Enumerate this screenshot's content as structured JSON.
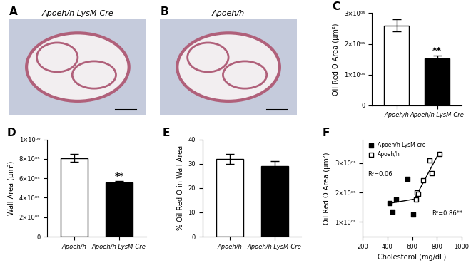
{
  "chart_data": [
    {
      "panel": "A",
      "type": "image",
      "title": "Apoeh/h LysM-Cre"
    },
    {
      "panel": "B",
      "type": "image",
      "title": "Apoeh/h"
    },
    {
      "panel": "C",
      "type": "bar",
      "categories": [
        "Apoeh/h",
        "Apoeh/h LysM-Cre"
      ],
      "values": [
        260000,
        152000
      ],
      "errors": [
        20000,
        10000
      ],
      "colors": [
        "#ffffff",
        "#000000"
      ],
      "y_label": "Oil Red O Area (µm²)",
      "ylim": [
        0,
        300000
      ],
      "yticks": [
        0,
        {
          "value": 100000,
          "label": "1×10⁰⁵"
        },
        {
          "value": 200000,
          "label": "2×10⁰⁵"
        },
        {
          "value": 300000,
          "label": "3×10⁰⁵"
        }
      ],
      "annotations": [
        {
          "text": "**",
          "x": "Apoeh/h LysM-Cre"
        }
      ]
    },
    {
      "panel": "D",
      "type": "bar",
      "categories": [
        "Apoeh/h",
        "Apoeh/h LysM-Cre"
      ],
      "values": [
        810000,
        555000
      ],
      "errors": [
        40000,
        15000
      ],
      "colors": [
        "#ffffff",
        "#000000"
      ],
      "y_label": "Wall Area (µm²)",
      "ylim": [
        0,
        1000000
      ],
      "yticks": [
        0,
        {
          "value": 200000,
          "label": "2×10⁰⁵"
        },
        {
          "value": 400000,
          "label": "4×10⁰⁵"
        },
        {
          "value": 600000,
          "label": "6×10⁰⁵"
        },
        {
          "value": 800000,
          "label": "8×10⁰⁵"
        },
        {
          "value": 1000000,
          "label": "1×10⁰⁶"
        }
      ],
      "annotations": [
        {
          "text": "**",
          "x": "Apoeh/h LysM-Cre"
        }
      ]
    },
    {
      "panel": "E",
      "type": "bar",
      "categories": [
        "Apoeh/h",
        "Apoeh/h LysM-Cre"
      ],
      "values": [
        32,
        29
      ],
      "errors": [
        2,
        2
      ],
      "colors": [
        "#ffffff",
        "#000000"
      ],
      "y_label": "% Oil Red O in Wall Area",
      "ylim": [
        0,
        40
      ],
      "yticks": [
        0,
        10,
        20,
        30,
        40
      ]
    },
    {
      "panel": "F",
      "type": "scatter",
      "series": [
        {
          "name": "Apoeh/h LysM-cre",
          "color": "#000000",
          "marker": "filled_square",
          "x": [
            420,
            440,
            470,
            560,
            610
          ],
          "values": [
            165000,
            135000,
            175000,
            245000,
            125000
          ]
        },
        {
          "name": "Apoeh/h",
          "color": "#000000",
          "marker": "open_square",
          "x": [
            630,
            640,
            650,
            690,
            740,
            760,
            820
          ],
          "values": [
            175000,
            200000,
            195000,
            240000,
            310000,
            265000,
            330000
          ]
        }
      ],
      "legend": "upper left",
      "x_label": "Cholesterol (mg/dL)",
      "y_label": "Oil Red O Area (µm²)",
      "xlim": [
        200,
        1000
      ],
      "xticks": [
        200,
        400,
        600,
        800,
        1000
      ],
      "ylim": [
        50000,
        380000
      ],
      "yticks": [
        {
          "value": 100000,
          "label": "1×10⁰⁵"
        },
        {
          "value": 200000,
          "label": "2×10⁰⁵"
        },
        {
          "value": 300000,
          "label": "3×10⁰⁵"
        }
      ],
      "annotations": [
        {
          "text": "R²=0.06"
        },
        {
          "text": "R²=0.86**"
        }
      ]
    }
  ]
}
